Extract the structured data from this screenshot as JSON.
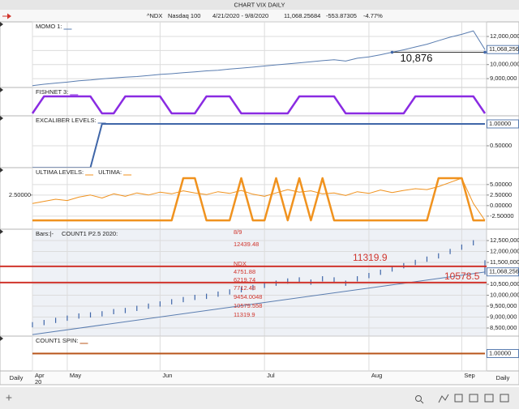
{
  "window_title": "CHART VIX DAILY",
  "toolbar": {
    "symbol": "^NDX",
    "name": "Nasdaq 100",
    "range": "4/21/2020 - 9/8/2020",
    "last": "11,068.25684",
    "change": "-553.87305",
    "change_pct": "-4.77%"
  },
  "x_axis": {
    "year": "20",
    "period_left": "Daily",
    "period_right": "Daily"
  },
  "footer": {
    "add": "+"
  },
  "chart_data": [
    {
      "type": "line",
      "series": [
        {
          "name": "MOMO 1:",
          "color": "#5a7db0",
          "width": 1,
          "values": [
            8500000,
            8600000,
            8680000,
            8750000,
            8850000,
            8900000,
            8980000,
            9050000,
            9100000,
            9150000,
            9220000,
            9300000,
            9350000,
            9420000,
            9480000,
            9550000,
            9600000,
            9680000,
            9750000,
            9820000,
            9900000,
            9980000,
            10050000,
            10120000,
            10200000,
            10280000,
            10350000,
            10250000,
            10450000,
            10550000,
            10700000,
            10876000,
            11050000,
            11250000,
            11450000,
            11700000,
            11950000,
            12150000,
            12400000,
            11068256
          ]
        }
      ],
      "ylim": [
        8370000,
        13040000
      ],
      "yticks": [
        {
          "value": 9000000,
          "label": "9,000,000"
        },
        {
          "value": 10000000,
          "label": "10,000,000"
        },
        {
          "value": 11000000,
          "label": "11,000,000"
        },
        {
          "value": 12000000,
          "label": "12,000,000"
        }
      ],
      "last_value": {
        "value": 11068256,
        "label": "11,068,256"
      },
      "annotation": "10,876",
      "grid": true
    },
    {
      "type": "line",
      "series": [
        {
          "name": "FISHNET 3:",
          "color": "#8a2be2",
          "width": 2.5,
          "values": [
            0,
            1,
            1,
            1,
            1,
            1,
            0,
            0,
            1,
            1,
            1,
            1,
            0,
            0,
            0,
            1,
            1,
            1,
            0,
            0,
            0,
            0,
            0,
            1,
            1,
            1,
            1,
            0,
            0,
            0,
            0,
            0,
            0,
            1,
            1,
            1,
            1,
            1,
            1,
            0
          ]
        }
      ],
      "grid": true
    },
    {
      "type": "line",
      "series": [
        {
          "name": "EXCALIBER LEVELS:",
          "color": "#3f66a8",
          "width": 2,
          "values": [
            0,
            0,
            0,
            0,
            0,
            0,
            1,
            1,
            1,
            1,
            1,
            1,
            1,
            1,
            1,
            1,
            1,
            1,
            1,
            1,
            1,
            1,
            1,
            1,
            1,
            1,
            1,
            1,
            1,
            1,
            1,
            1,
            1,
            1,
            1,
            1,
            1,
            1,
            1,
            1
          ]
        }
      ],
      "ylim": [
        0,
        1.185
      ],
      "yticks": [
        {
          "value": 0.5,
          "label": "0.50000"
        }
      ],
      "last_value": {
        "value": 1,
        "label": "1.00000"
      },
      "grid": true
    },
    {
      "type": "line",
      "series": [
        {
          "name": "ULTIMA LEVELS:",
          "color": "#f0921e",
          "width": 2.5,
          "values": [
            -3.5,
            -3.5,
            -3.5,
            -3.5,
            -3.5,
            -3.5,
            -3.5,
            -3.5,
            -3.5,
            -3.5,
            -3.5,
            -3.5,
            -3.5,
            6.5,
            6.5,
            -3.5,
            -3.5,
            -3.5,
            6.5,
            -3.5,
            -3.5,
            6.5,
            -3.5,
            6.5,
            -3.5,
            6.5,
            -3.5,
            -3.5,
            -3.5,
            -3.5,
            -3.5,
            -3.5,
            -3.5,
            -3.5,
            -3.5,
            6.5,
            6.5,
            6.5,
            -3.5,
            -3.5
          ]
        },
        {
          "name": "ULTIMA:",
          "color": "#f0921e",
          "width": 1,
          "values": [
            0.5,
            1.0,
            1.5,
            1.2,
            2.0,
            2.5,
            1.8,
            2.8,
            2.2,
            3.0,
            2.5,
            3.2,
            2.8,
            3.5,
            3.0,
            2.6,
            3.3,
            2.9,
            3.6,
            2.7,
            2.2,
            3.0,
            3.8,
            3.2,
            3.5,
            2.8,
            3.0,
            2.4,
            3.3,
            2.9,
            3.7,
            3.1,
            3.6,
            4.0,
            3.8,
            4.5,
            5.5,
            6.5,
            0.5,
            -3.5
          ]
        }
      ],
      "ylim": [
        -5.6,
        9.0
      ],
      "yticks": [
        {
          "value": -2.5,
          "label": "-2.50000"
        },
        {
          "value": 0,
          "label": "0.00000"
        },
        {
          "value": 2.5,
          "label": "2.50000"
        },
        {
          "value": 5,
          "label": "5.00000"
        }
      ],
      "yticks_left": [
        {
          "value": 2.5,
          "label": "2.50000"
        }
      ],
      "grid": true
    },
    {
      "type": "ohlc",
      "legend": [
        "Bars:|-",
        "COUNT1 P2.5 2020:"
      ],
      "color": "#3f66a8",
      "low": [
        8530000,
        8630000,
        8730000,
        8830000,
        8930000,
        8980000,
        9030000,
        9130000,
        9180000,
        9280000,
        9380000,
        9480000,
        9580000,
        9680000,
        9780000,
        9830000,
        9930000,
        10030000,
        10130000,
        10230000,
        10330000,
        10430000,
        10530000,
        10580000,
        10480000,
        10630000,
        10580000,
        10430000,
        10630000,
        10780000,
        10930000,
        11080000,
        11230000,
        11380000,
        11530000,
        11680000,
        11880000,
        12080000,
        12280000,
        10950000
      ],
      "high": [
        8770000,
        8870000,
        8970000,
        9070000,
        9170000,
        9220000,
        9270000,
        9370000,
        9420000,
        9520000,
        9620000,
        9720000,
        9820000,
        9920000,
        10020000,
        10070000,
        10170000,
        10270000,
        10370000,
        10470000,
        10570000,
        10670000,
        10770000,
        10820000,
        10720000,
        10870000,
        10820000,
        10670000,
        10870000,
        11020000,
        11170000,
        11320000,
        11470000,
        11620000,
        11770000,
        11920000,
        12120000,
        12320000,
        12520000,
        11600000
      ],
      "trend": {
        "color": "#5a7db0",
        "values": [
          8200000,
          11060000
        ]
      },
      "levels": [
        {
          "value": 11319900,
          "label": "11319.9"
        },
        {
          "value": 10578500,
          "label": "10578.5"
        }
      ],
      "level_color": "#d0342c",
      "notes": [
        "8/9",
        "12439.48",
        "NDX",
        "4751.88",
        "6219.74",
        "7712.48",
        "9454.0048",
        "10579.558",
        "11319.9"
      ],
      "ylim": [
        8130000,
        13020000
      ],
      "yticks": [
        {
          "value": 8500000,
          "label": "8,500,000"
        },
        {
          "value": 9000000,
          "label": "9,000,000"
        },
        {
          "value": 9500000,
          "label": "9,500,000"
        },
        {
          "value": 10000000,
          "label": "10,000,000"
        },
        {
          "value": 10500000,
          "label": "10,500,000"
        },
        {
          "value": 11500000,
          "label": "11,500,000"
        },
        {
          "value": 12000000,
          "label": "12,000,000"
        },
        {
          "value": 12500000,
          "label": "12,500,000"
        }
      ],
      "last_value": {
        "value": 11068256,
        "label": "11,068,256"
      },
      "grid": true
    },
    {
      "type": "line",
      "categories": [
        "Apr",
        null,
        null,
        "May",
        null,
        null,
        null,
        null,
        null,
        null,
        null,
        "Jun",
        null,
        null,
        null,
        null,
        null,
        null,
        null,
        null,
        "Jul",
        null,
        null,
        null,
        null,
        null,
        null,
        null,
        null,
        "Aug",
        null,
        null,
        null,
        null,
        null,
        null,
        null,
        "Sep",
        null,
        null
      ],
      "series": [
        {
          "name": "COUNT1 SPIN:",
          "color": "#b8541a",
          "width": 2,
          "values": [
            1,
            1,
            1,
            1,
            1,
            1,
            1,
            1,
            1,
            1,
            1,
            1,
            1,
            1,
            1,
            1,
            1,
            1,
            1,
            1,
            1,
            1,
            1,
            1,
            1,
            1,
            1,
            1,
            1,
            1,
            1,
            1,
            1,
            1,
            1,
            1,
            1,
            1,
            1,
            1
          ]
        }
      ],
      "last_value": {
        "value": 1,
        "label": "1.00000"
      },
      "grid": true
    }
  ]
}
